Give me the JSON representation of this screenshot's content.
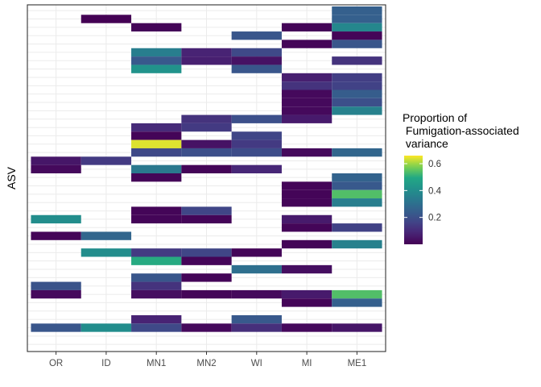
{
  "chart_data": {
    "type": "heatmap",
    "ylabel": "ASV",
    "xlabel": "",
    "x_categories": [
      "OR",
      "ID",
      "MN1",
      "MN2",
      "WI",
      "MI",
      "ME1"
    ],
    "n_rows": 41,
    "row_order": "top_to_bottom",
    "grid": true,
    "legend": {
      "title": "Proportion of\n Fumigation-associated\n variance",
      "ticks": [
        0.2,
        0.4,
        0.6
      ],
      "tick_labels": [
        "0.2",
        "0.4",
        "0.6"
      ],
      "range": [
        0.0,
        0.66
      ],
      "placement": "right",
      "palette": "viridis"
    },
    "cells": [
      {
        "row": 0,
        "col": "ME1",
        "value": 0.25
      },
      {
        "row": 1,
        "col": "ID",
        "value": 0.0
      },
      {
        "row": 1,
        "col": "ME1",
        "value": 0.25
      },
      {
        "row": 2,
        "col": "MN1",
        "value": 0.01
      },
      {
        "row": 2,
        "col": "MI",
        "value": 0.01
      },
      {
        "row": 2,
        "col": "ME1",
        "value": 0.38
      },
      {
        "row": 3,
        "col": "WI",
        "value": 0.22
      },
      {
        "row": 3,
        "col": "ME1",
        "value": 0.01
      },
      {
        "row": 4,
        "col": "MI",
        "value": 0.01
      },
      {
        "row": 4,
        "col": "ME1",
        "value": 0.22
      },
      {
        "row": 5,
        "col": "MN1",
        "value": 0.35
      },
      {
        "row": 5,
        "col": "MN2",
        "value": 0.08
      },
      {
        "row": 5,
        "col": "WI",
        "value": 0.18
      },
      {
        "row": 6,
        "col": "MN1",
        "value": 0.23
      },
      {
        "row": 6,
        "col": "MN2",
        "value": 0.07
      },
      {
        "row": 6,
        "col": "WI",
        "value": 0.04
      },
      {
        "row": 6,
        "col": "ME1",
        "value": 0.12
      },
      {
        "row": 7,
        "col": "MN1",
        "value": 0.42
      },
      {
        "row": 7,
        "col": "WI",
        "value": 0.22
      },
      {
        "row": 8,
        "col": "MI",
        "value": 0.07
      },
      {
        "row": 8,
        "col": "ME1",
        "value": 0.15
      },
      {
        "row": 9,
        "col": "MI",
        "value": 0.12
      },
      {
        "row": 9,
        "col": "ME1",
        "value": 0.16
      },
      {
        "row": 10,
        "col": "MI",
        "value": 0.02
      },
      {
        "row": 10,
        "col": "ME1",
        "value": 0.24
      },
      {
        "row": 11,
        "col": "MI",
        "value": 0.02
      },
      {
        "row": 11,
        "col": "ME1",
        "value": 0.2
      },
      {
        "row": 12,
        "col": "MI",
        "value": 0.02
      },
      {
        "row": 12,
        "col": "ME1",
        "value": 0.36
      },
      {
        "row": 13,
        "col": "MN2",
        "value": 0.12
      },
      {
        "row": 13,
        "col": "WI",
        "value": 0.2
      },
      {
        "row": 13,
        "col": "MI",
        "value": 0.06
      },
      {
        "row": 14,
        "col": "MN1",
        "value": 0.1
      },
      {
        "row": 14,
        "col": "MN2",
        "value": 0.14
      },
      {
        "row": 15,
        "col": "MN1",
        "value": 0.01
      },
      {
        "row": 15,
        "col": "WI",
        "value": 0.17
      },
      {
        "row": 16,
        "col": "MN1",
        "value": 0.64
      },
      {
        "row": 16,
        "col": "MN2",
        "value": 0.04
      },
      {
        "row": 16,
        "col": "WI",
        "value": 0.14
      },
      {
        "row": 17,
        "col": "MN1",
        "value": 0.18
      },
      {
        "row": 17,
        "col": "MN2",
        "value": 0.2
      },
      {
        "row": 17,
        "col": "WI",
        "value": 0.19
      },
      {
        "row": 17,
        "col": "MI",
        "value": 0.02
      },
      {
        "row": 17,
        "col": "ME1",
        "value": 0.27
      },
      {
        "row": 18,
        "col": "OR",
        "value": 0.05
      },
      {
        "row": 18,
        "col": "ID",
        "value": 0.14
      },
      {
        "row": 19,
        "col": "OR",
        "value": 0.02
      },
      {
        "row": 19,
        "col": "MN1",
        "value": 0.33
      },
      {
        "row": 19,
        "col": "MN2",
        "value": 0.01
      },
      {
        "row": 19,
        "col": "WI",
        "value": 0.09
      },
      {
        "row": 20,
        "col": "MN1",
        "value": 0.01
      },
      {
        "row": 20,
        "col": "ME1",
        "value": 0.26
      },
      {
        "row": 21,
        "col": "MI",
        "value": 0.01
      },
      {
        "row": 21,
        "col": "ME1",
        "value": 0.23
      },
      {
        "row": 22,
        "col": "MI",
        "value": 0.01
      },
      {
        "row": 22,
        "col": "ME1",
        "value": 0.54
      },
      {
        "row": 23,
        "col": "MI",
        "value": 0.01
      },
      {
        "row": 23,
        "col": "ME1",
        "value": 0.35
      },
      {
        "row": 24,
        "col": "MN1",
        "value": 0.01
      },
      {
        "row": 24,
        "col": "MN2",
        "value": 0.17
      },
      {
        "row": 25,
        "col": "OR",
        "value": 0.4
      },
      {
        "row": 25,
        "col": "MN1",
        "value": 0.01
      },
      {
        "row": 25,
        "col": "MN2",
        "value": 0.01
      },
      {
        "row": 25,
        "col": "MI",
        "value": 0.06
      },
      {
        "row": 26,
        "col": "MI",
        "value": 0.01
      },
      {
        "row": 26,
        "col": "ME1",
        "value": 0.16
      },
      {
        "row": 27,
        "col": "OR",
        "value": 0.01
      },
      {
        "row": 27,
        "col": "ID",
        "value": 0.27
      },
      {
        "row": 28,
        "col": "MI",
        "value": 0.01
      },
      {
        "row": 28,
        "col": "ME1",
        "value": 0.36
      },
      {
        "row": 29,
        "col": "ID",
        "value": 0.4
      },
      {
        "row": 29,
        "col": "MN1",
        "value": 0.14
      },
      {
        "row": 29,
        "col": "MN2",
        "value": 0.17
      },
      {
        "row": 29,
        "col": "WI",
        "value": 0.01
      },
      {
        "row": 30,
        "col": "MN1",
        "value": 0.5
      },
      {
        "row": 30,
        "col": "MN2",
        "value": 0.01
      },
      {
        "row": 31,
        "col": "WI",
        "value": 0.3
      },
      {
        "row": 31,
        "col": "MI",
        "value": 0.03
      },
      {
        "row": 32,
        "col": "MN1",
        "value": 0.22
      },
      {
        "row": 32,
        "col": "MN2",
        "value": 0.01
      },
      {
        "row": 33,
        "col": "OR",
        "value": 0.21
      },
      {
        "row": 33,
        "col": "MN1",
        "value": 0.12
      },
      {
        "row": 34,
        "col": "OR",
        "value": 0.02
      },
      {
        "row": 34,
        "col": "MN1",
        "value": 0.03
      },
      {
        "row": 34,
        "col": "MN2",
        "value": 0.01
      },
      {
        "row": 34,
        "col": "WI",
        "value": 0.02
      },
      {
        "row": 34,
        "col": "MI",
        "value": 0.06
      },
      {
        "row": 34,
        "col": "ME1",
        "value": 0.54
      },
      {
        "row": 35,
        "col": "MI",
        "value": 0.01
      },
      {
        "row": 35,
        "col": "ME1",
        "value": 0.25
      },
      {
        "row": 37,
        "col": "MN1",
        "value": 0.08
      },
      {
        "row": 37,
        "col": "WI",
        "value": 0.23
      },
      {
        "row": 38,
        "col": "OR",
        "value": 0.22
      },
      {
        "row": 38,
        "col": "ID",
        "value": 0.4
      },
      {
        "row": 38,
        "col": "MN1",
        "value": 0.18
      },
      {
        "row": 38,
        "col": "MN2",
        "value": 0.02
      },
      {
        "row": 38,
        "col": "WI",
        "value": 0.11
      },
      {
        "row": 38,
        "col": "MI",
        "value": 0.02
      },
      {
        "row": 38,
        "col": "ME1",
        "value": 0.05
      }
    ]
  }
}
